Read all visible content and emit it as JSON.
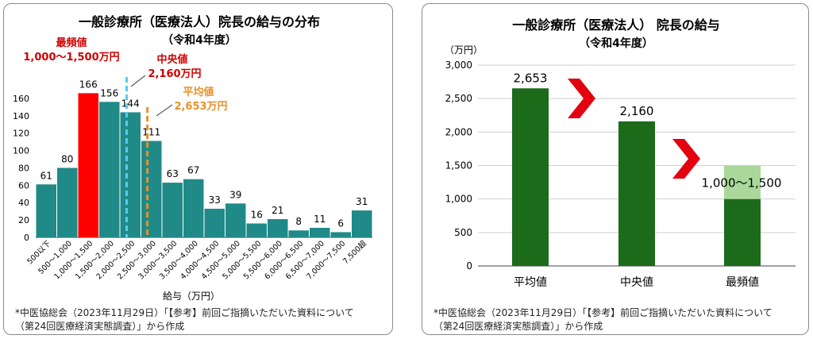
{
  "colors": {
    "bar": "#1f8a87",
    "bar_highlight": "#ff0000",
    "median": "#55ccf0",
    "mean": "#e8902a",
    "red_text": "#d00000",
    "orange_text": "#e8902a",
    "green_dark": "#1b6b1b",
    "green_light": "#a9d89a",
    "chevron": "#e3000f"
  },
  "left": {
    "title": "一般診療所（医療法人）院長の給与の分布",
    "subtitle": "（令和4年度）",
    "annot_mode_label": "最頻値",
    "annot_mode_value": "1,000〜1,500万円",
    "annot_median_label": "中央値",
    "annot_median_value": "2,160万円",
    "annot_mean_label": "平均値",
    "annot_mean_value": "2,653万円",
    "footnote_line1": "*中医協総会（2023年11月29日）「【参考】前回ご指摘いただいた資料について",
    "footnote_line2": "（第24回医療経済実態調査）」から作成"
  },
  "right": {
    "title": "一般診療所（医療法人） 院長の給与",
    "subtitle": "（令和4年度）",
    "footnote_line1": "*中医協総会（2023年11月29日）「【参考】前回ご指摘いただいた資料について",
    "footnote_line2": "（第24回医療経済実態調査）」から作成"
  },
  "chart_data": [
    {
      "type": "bar",
      "categories": [
        "500以下",
        "500〜1,000",
        "1,000〜1,500",
        "1,500〜2,000",
        "2,000〜2,500",
        "2,500〜3,000",
        "3,000〜3,500",
        "3,500〜4,000",
        "4,000〜4,500",
        "4,500〜5,000",
        "5,000〜5,500",
        "5,500〜6,000",
        "6,000〜6,500",
        "6,500〜7,000",
        "7,000〜7,500",
        "7,500超"
      ],
      "values": [
        61,
        80,
        166,
        156,
        144,
        111,
        63,
        67,
        33,
        39,
        16,
        21,
        8,
        11,
        6,
        31
      ],
      "highlight_index": 2,
      "title": "一般診療所（医療法人）院長の給与の分布",
      "xlabel": "給与（万円）",
      "ylabel": "",
      "ylim": [
        0,
        170
      ],
      "yticks": [
        0,
        20,
        40,
        60,
        80,
        100,
        120,
        140,
        160
      ],
      "reference_lines": [
        {
          "name": "中央値",
          "x": 2160
        },
        {
          "name": "平均値",
          "x": 2653
        }
      ]
    },
    {
      "type": "bar",
      "categories": [
        "平均値",
        "中央値",
        "最頻値"
      ],
      "values": [
        2653,
        2160,
        1500
      ],
      "range_band": {
        "category": "最頻値",
        "low": 1000,
        "high": 1500
      },
      "data_labels": [
        "2,653",
        "2,160",
        "1,000〜1,500"
      ],
      "title": "一般診療所（医療法人） 院長の給与",
      "ylabel": "（万円）",
      "ylim": [
        0,
        3000
      ],
      "yticks": [
        0,
        500,
        1000,
        1500,
        2000,
        2500,
        3000
      ],
      "ytick_labels": [
        "0",
        "500",
        "1,000",
        "1,500",
        "2,000",
        "2,500",
        "3,000"
      ]
    }
  ]
}
